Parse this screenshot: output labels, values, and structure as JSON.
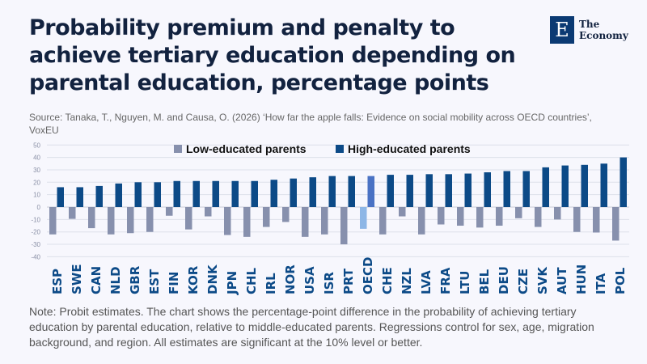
{
  "header": {
    "title": "Probability premium and penalty to achieve tertiary education depending on parental education, percentage points",
    "source": "Source: Tanaka, T., Nguyen, M. and Causa, O. (2026) ‘How far the apple falls: Evidence on social mobility across OECD countries’, VoxEU"
  },
  "logo": {
    "letter": "E",
    "line1": "The",
    "line2": "Economy"
  },
  "note": "Note: Probit estimates. The chart shows the percentage-point difference in the probability of achieving tertiary education by parental education, relative to middle-educated parents. Regressions control for sex, age, migration background, and region. All estimates are significant at the 10% level or better.",
  "colors": {
    "low": "#8790ad",
    "high": "#0c4a87",
    "oecd_low": "#8db6e6",
    "oecd_high": "#4a72c4",
    "label": "#0c4a87",
    "grid": "#dde0ea"
  },
  "chart_data": {
    "type": "bar",
    "title": "",
    "xlabel": "",
    "ylabel": "",
    "ylim": [
      -40,
      50
    ],
    "yticks": [
      -40,
      -30,
      -20,
      -10,
      0,
      10,
      20,
      30,
      40,
      50
    ],
    "grid": true,
    "legend_placement": "top",
    "categories": [
      "ESP",
      "SWE",
      "CAN",
      "NLD",
      "GBR",
      "EST",
      "FIN",
      "KOR",
      "DNK",
      "JPN",
      "CHL",
      "IRL",
      "NOR",
      "USA",
      "ISR",
      "PRT",
      "OECD",
      "CHE",
      "NZL",
      "LVA",
      "FRA",
      "LTU",
      "BEL",
      "DEU",
      "CZE",
      "SVK",
      "AUT",
      "HUN",
      "ITA",
      "POL"
    ],
    "series": [
      {
        "name": "Low-educated parents",
        "values": [
          -22,
          -9.5,
          -17,
          -22,
          -21,
          -20,
          -7,
          -18,
          -7.5,
          -22.5,
          -24,
          -16,
          -12,
          -24,
          -22,
          -30,
          -17.5,
          -22,
          -7.5,
          -22,
          -14,
          -15,
          -16.5,
          -15,
          -9,
          -16,
          -10,
          -20,
          -20.5,
          -27
        ]
      },
      {
        "name": "High-educated parents",
        "values": [
          16,
          16,
          17,
          19,
          20,
          20,
          21,
          21,
          21,
          21,
          21,
          22,
          23,
          24,
          25,
          25,
          25,
          26,
          26,
          26.5,
          26.5,
          27,
          28,
          29,
          29,
          32,
          33.5,
          34,
          35,
          40
        ]
      }
    ]
  }
}
